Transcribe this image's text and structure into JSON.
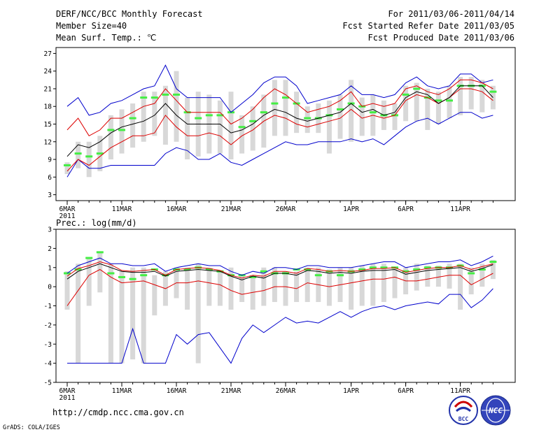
{
  "header": {
    "title": "DERF/NCC/BCC Monthly Forecast",
    "member_size": "Member Size=40",
    "variable": "Mean Surf. Temp.: ℃",
    "period": "For 2011/03/06-2011/04/14",
    "fcst_started": "Fcst Started Refer Date 2011/03/05",
    "fcst_produced": "Fcst Produced Date 2011/03/06"
  },
  "footer": {
    "url": "http://cmdp.ncc.cma.gov.cn",
    "grads": "GrADS: COLA/IGES",
    "logo_bcc": "BCC",
    "logo_ncc": "NCC"
  },
  "colors": {
    "box": "#d8d8d8",
    "median": "#44ee44",
    "mean": "#000000",
    "sd": "#dd0000",
    "extreme": "#0000cc"
  },
  "chart_data": [
    {
      "type": "box-plume",
      "title": "Mean Surf. Temp.: ℃",
      "ylim": [
        2,
        28
      ],
      "yticks": [
        3,
        6,
        9,
        12,
        15,
        18,
        21,
        24,
        27
      ],
      "categories": [
        "6MAR",
        "7MAR",
        "8MAR",
        "9MAR",
        "10MAR",
        "11MAR",
        "12MAR",
        "13MAR",
        "14MAR",
        "15MAR",
        "16MAR",
        "17MAR",
        "18MAR",
        "19MAR",
        "20MAR",
        "21MAR",
        "22MAR",
        "23MAR",
        "24MAR",
        "25MAR",
        "26MAR",
        "27MAR",
        "28MAR",
        "29MAR",
        "30MAR",
        "31MAR",
        "1APR",
        "2APR",
        "3APR",
        "4APR",
        "5APR",
        "6APR",
        "7APR",
        "8APR",
        "9APR",
        "10APR",
        "11APR",
        "12APR",
        "13APR",
        "14APR"
      ],
      "xtick_labels": [
        {
          "label": "6MAR",
          "sub": "2011",
          "day": 0
        },
        {
          "label": "11MAR",
          "day": 5
        },
        {
          "label": "16MAR",
          "day": 10
        },
        {
          "label": "21MAR",
          "day": 15
        },
        {
          "label": "26MAR",
          "day": 20
        },
        {
          "label": "1APR",
          "day": 26
        },
        {
          "label": "6APR",
          "day": 31
        },
        {
          "label": "11APR",
          "day": 36
        }
      ],
      "box_low": [
        6.5,
        7.5,
        6,
        7,
        9,
        10,
        11,
        12,
        13,
        11.5,
        12,
        9,
        9.5,
        10,
        10,
        9,
        10,
        10.5,
        11,
        13,
        13,
        13.5,
        13.5,
        13.5,
        10,
        12.5,
        12,
        13,
        13,
        14,
        14,
        15.5,
        15.5,
        14,
        15,
        16,
        16.5,
        17.5,
        17,
        17.5
      ],
      "box_high": [
        8.5,
        12,
        12,
        13,
        16.5,
        17.5,
        18.5,
        20.5,
        20.5,
        21.5,
        24,
        19.5,
        20.5,
        20,
        19,
        20.5,
        16.5,
        18,
        20,
        22.5,
        22.5,
        20.5,
        18,
        18.5,
        19,
        20,
        22.5,
        19.5,
        20,
        19,
        18.5,
        21.5,
        22,
        21,
        20.5,
        21.5,
        23,
        23,
        22.5,
        21.5
      ],
      "median": [
        8,
        10,
        9.5,
        10,
        14,
        14,
        16,
        19.5,
        19.5,
        20,
        20,
        17,
        16,
        16.5,
        16.5,
        17,
        14.5,
        15.5,
        17,
        18.5,
        19.5,
        18.5,
        16,
        16,
        16.5,
        17.5,
        18.5,
        18,
        17,
        16.5,
        16.5,
        20,
        21,
        19.5,
        19,
        19,
        21.5,
        21.5,
        21.5,
        20.5
      ],
      "mean": [
        9.5,
        11.5,
        11,
        12,
        13.5,
        14.5,
        15,
        15.5,
        16.5,
        18.5,
        16.5,
        15,
        15,
        15,
        15,
        13.5,
        14,
        15,
        16.5,
        17.5,
        17,
        16,
        15.5,
        16,
        16.5,
        17,
        18.5,
        17,
        17.5,
        16.5,
        17,
        19.5,
        20.5,
        20,
        18.5,
        19.5,
        21.5,
        21.5,
        21.5,
        19.5
      ],
      "sd_upper": [
        14,
        16,
        13,
        14,
        16,
        16,
        17,
        18,
        18.5,
        21,
        19,
        17,
        17,
        17,
        17,
        15,
        16,
        17.5,
        19.5,
        21,
        20,
        18.5,
        17,
        17.5,
        18,
        19,
        20.5,
        18,
        18.5,
        18,
        18.5,
        21,
        21.5,
        20.5,
        20,
        21,
        22.5,
        22.5,
        22,
        21
      ],
      "sd_lower": [
        7,
        9,
        8,
        9.5,
        11,
        12,
        13,
        13,
        13.5,
        16.5,
        14.5,
        13,
        13,
        13.5,
        13,
        11.5,
        13,
        14,
        15.5,
        16.5,
        16,
        15,
        14.5,
        15,
        15.5,
        16,
        17.5,
        16,
        16.5,
        16,
        16.5,
        19,
        20,
        19.5,
        18.5,
        19.5,
        21,
        21,
        20.5,
        19
      ],
      "max": [
        18,
        19.5,
        16.5,
        17,
        18.5,
        19,
        20,
        21,
        21.5,
        25,
        21,
        19.5,
        19.5,
        19.5,
        19.5,
        17,
        18.5,
        20,
        22,
        23,
        23,
        21.5,
        18.5,
        19,
        19.5,
        20,
        21.5,
        20,
        20,
        19.5,
        20,
        22,
        23,
        21.5,
        21,
        21.5,
        23.5,
        23.5,
        22,
        22.5
      ],
      "min": [
        6,
        9,
        7.5,
        7.5,
        8,
        8,
        8,
        8,
        8,
        10,
        11,
        10.5,
        9,
        9,
        10,
        8.5,
        8,
        9,
        10,
        11,
        12,
        11.5,
        11.5,
        12,
        12,
        12,
        12.5,
        12,
        12.5,
        11.5,
        13,
        14.5,
        15.5,
        16,
        15,
        16,
        17,
        17,
        16,
        16.5
      ]
    },
    {
      "type": "box-plume",
      "title": "Prec.: log(mm/d)",
      "ylim": [
        -5,
        3
      ],
      "yticks": [
        -5,
        -4,
        -3,
        -2,
        -1,
        0,
        1,
        2,
        3
      ],
      "categories": [
        "6MAR",
        "7MAR",
        "8MAR",
        "9MAR",
        "10MAR",
        "11MAR",
        "12MAR",
        "13MAR",
        "14MAR",
        "15MAR",
        "16MAR",
        "17MAR",
        "18MAR",
        "19MAR",
        "20MAR",
        "21MAR",
        "22MAR",
        "23MAR",
        "24MAR",
        "25MAR",
        "26MAR",
        "27MAR",
        "28MAR",
        "29MAR",
        "30MAR",
        "31MAR",
        "1APR",
        "2APR",
        "3APR",
        "4APR",
        "5APR",
        "6APR",
        "7APR",
        "8APR",
        "9APR",
        "10APR",
        "11APR",
        "12APR",
        "13APR",
        "14APR"
      ],
      "xtick_labels": [
        {
          "label": "6MAR",
          "sub": "2011",
          "day": 0
        },
        {
          "label": "11MAR",
          "day": 5
        },
        {
          "label": "16MAR",
          "day": 10
        },
        {
          "label": "21MAR",
          "day": 15
        },
        {
          "label": "26MAR",
          "day": 20
        },
        {
          "label": "1APR",
          "day": 26
        },
        {
          "label": "6APR",
          "day": 31
        },
        {
          "label": "11APR",
          "day": 36
        }
      ],
      "box_low": [
        -1.2,
        -4,
        -1,
        -0.3,
        -4,
        -4,
        -3.8,
        -4,
        -1.5,
        -1,
        -0.6,
        -1.2,
        -4,
        -1,
        -1,
        -1.2,
        -0.8,
        -1.2,
        -1,
        -0.8,
        -1,
        -0.8,
        -0.8,
        -0.8,
        -1,
        -0.8,
        -1.2,
        -1,
        -1,
        -0.8,
        -0.6,
        -0.4,
        -0.2,
        0,
        0,
        -0.1,
        -1.2,
        -0.4,
        0,
        0.4
      ],
      "box_high": [
        0.8,
        1.2,
        1.5,
        1.8,
        1.2,
        0.8,
        1,
        1,
        0.6,
        0.8,
        1,
        1,
        1.2,
        1,
        0.8,
        1,
        0.6,
        0.6,
        1,
        1,
        0.8,
        0.8,
        1,
        1,
        0.9,
        1,
        1,
        1.1,
        1.2,
        1.2,
        1,
        1,
        1.2,
        1.1,
        1.1,
        1.2,
        1.2,
        1,
        1.2,
        1.4
      ],
      "median": [
        0.7,
        0.9,
        1.5,
        1.8,
        0.7,
        0.5,
        0.4,
        0.6,
        0.9,
        0.6,
        0.9,
        0.9,
        1.0,
        0.9,
        0.8,
        0.6,
        0.6,
        0.5,
        0.8,
        0.7,
        0.7,
        0.9,
        0.9,
        0.6,
        0.8,
        0.6,
        0.8,
        0.9,
        1.0,
        1.0,
        1.0,
        0.8,
        0.9,
        1.0,
        1.0,
        1.0,
        1.1,
        0.7,
        0.9,
        1.3
      ],
      "mean": [
        0.4,
        0.8,
        1.0,
        1.2,
        1.0,
        0.8,
        0.75,
        0.75,
        0.8,
        0.55,
        0.8,
        0.85,
        0.9,
        0.85,
        0.8,
        0.55,
        0.35,
        0.55,
        0.45,
        0.7,
        0.7,
        0.6,
        0.85,
        0.8,
        0.7,
        0.75,
        0.7,
        0.8,
        0.85,
        0.85,
        0.9,
        0.65,
        0.75,
        0.85,
        0.9,
        0.95,
        1.0,
        0.8,
        0.95,
        1.15
      ],
      "sd_upper": [
        0.55,
        0.95,
        1.1,
        1.3,
        1.15,
        0.85,
        0.8,
        0.85,
        0.9,
        0.6,
        0.9,
        0.95,
        1.0,
        0.95,
        0.85,
        0.6,
        0.45,
        0.6,
        0.55,
        0.8,
        0.8,
        0.7,
        0.95,
        0.9,
        0.8,
        0.85,
        0.8,
        0.85,
        0.95,
        0.95,
        1.0,
        0.75,
        0.85,
        0.95,
        1.0,
        1.0,
        1.1,
        0.9,
        1.05,
        1.2
      ],
      "sd_lower": [
        -1,
        -0.2,
        0.6,
        0.9,
        0.5,
        0.2,
        0.25,
        0.3,
        0.1,
        -0.1,
        0.2,
        0.2,
        0.3,
        0.2,
        0.1,
        -0.2,
        -0.4,
        -0.3,
        -0.2,
        0,
        0,
        -0.1,
        0.2,
        0.1,
        0,
        0.1,
        0.2,
        0.3,
        0.4,
        0.4,
        0.5,
        0.3,
        0.3,
        0.4,
        0.5,
        0.6,
        0.6,
        0.1,
        0.4,
        0.7
      ],
      "max": [
        0.7,
        1.1,
        1.3,
        1.5,
        1.2,
        1.2,
        1.1,
        1.1,
        1.2,
        0.8,
        1.0,
        1.1,
        1.2,
        1.1,
        1.1,
        0.8,
        0.6,
        0.8,
        0.7,
        1.0,
        1.0,
        0.9,
        1.1,
        1.1,
        1.0,
        1.0,
        1.0,
        1.1,
        1.2,
        1.3,
        1.3,
        1.0,
        1.1,
        1.2,
        1.3,
        1.3,
        1.4,
        1.1,
        1.3,
        1.6
      ],
      "min": [
        -4,
        -4,
        -4,
        -4,
        -4,
        -4,
        -2.2,
        -4,
        -4,
        -4,
        -2.5,
        -3,
        -2.5,
        -2.4,
        -3.2,
        -4,
        -2.7,
        -2.0,
        -2.4,
        -2.0,
        -1.6,
        -1.9,
        -1.8,
        -1.9,
        -1.6,
        -1.3,
        -1.6,
        -1.3,
        -1.1,
        -1.0,
        -1.2,
        -1.0,
        -0.9,
        -0.8,
        -0.9,
        -0.4,
        -0.4,
        -1.1,
        -0.7,
        -0.1
      ]
    }
  ]
}
